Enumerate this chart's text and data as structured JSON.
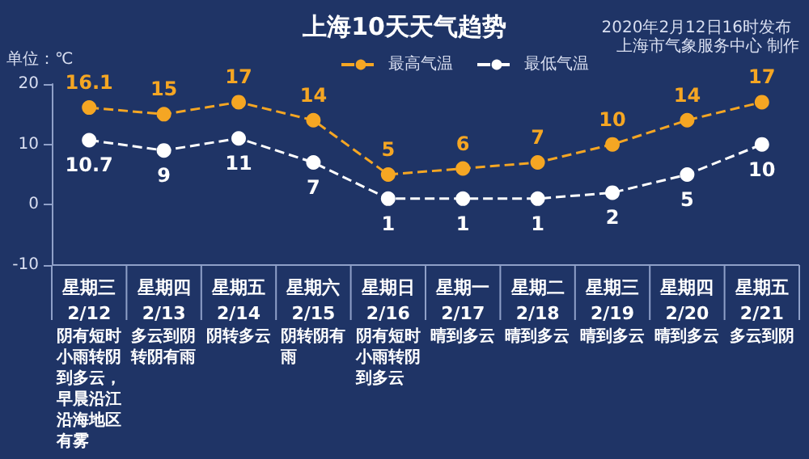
{
  "chart_data": {
    "type": "line",
    "title": "上海10天天气趋势",
    "subtitle": "2020年2月12日16时发布",
    "ylabel": "单位：℃",
    "categories": [
      "星期三\n2/12",
      "星期四\n2/13",
      "星期五\n2/14",
      "星期六\n2/15",
      "星期日\n2/16",
      "星期一\n2/17",
      "星期二\n2/18",
      "星期三\n2/19",
      "星期四\n2/20",
      "星期五\n2/21"
    ],
    "series": [
      {
        "name": "最高气温",
        "color": "#f5a623",
        "values": [
          16.1,
          15,
          17,
          14,
          5,
          6,
          7,
          10,
          14,
          17
        ]
      },
      {
        "name": "最低气温",
        "color": "#ffffff",
        "values": [
          10.7,
          9,
          11,
          7,
          1,
          1,
          1,
          2,
          5,
          10
        ]
      }
    ],
    "ylim": [
      -10,
      20
    ],
    "yticks": [
      -10,
      0,
      10,
      20
    ],
    "grid": false,
    "legend": "top",
    "marker": "circle",
    "line_style": "dashed",
    "data_labels": true,
    "annotations": [
      "阴有短时小雨转阴到多云，早晨沿江沿海地区有雾",
      "多云到阴转阴有雨",
      "阴转多云",
      "阴转阴有雨",
      "阴有短时小雨转阴到多云",
      "晴到多云",
      "晴到多云",
      "晴到多云",
      "晴到多云",
      "多云到阴",
      "上海市气象服务中心 制作"
    ]
  }
}
